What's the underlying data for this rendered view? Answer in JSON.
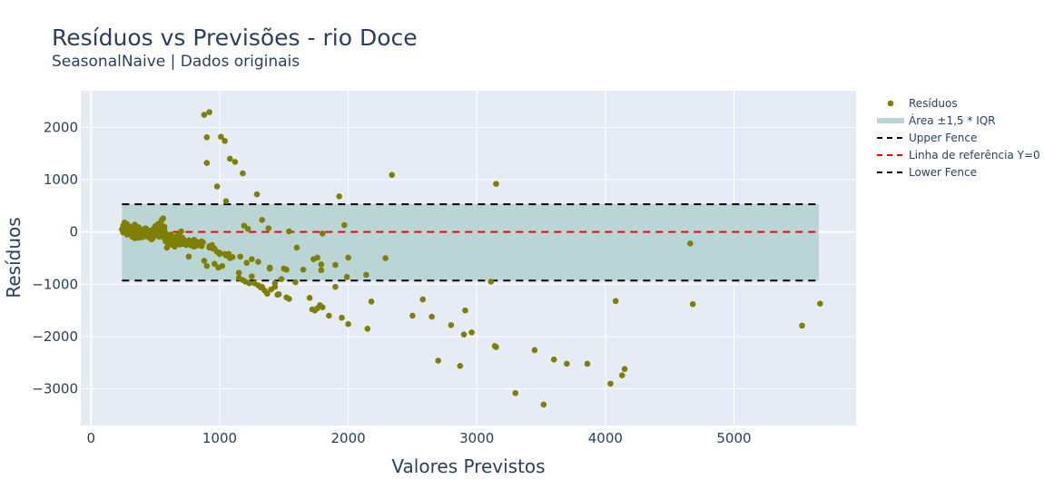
{
  "chart_data": {
    "type": "scatter",
    "title": "Resíduos vs Previsões - rio Doce",
    "subtitle": "SeasonalNaive | Dados originais",
    "xlabel": "Valores Previstos",
    "ylabel": "Resíduos",
    "xlim": [
      -80,
      5950
    ],
    "ylim": [
      -3700,
      2700
    ],
    "xticks": [
      0,
      1000,
      2000,
      3000,
      4000,
      5000
    ],
    "xtick_labels": [
      "0",
      "1000",
      "2000",
      "3000",
      "4000",
      "5000"
    ],
    "yticks": [
      2000,
      1000,
      0,
      -1000,
      -2000,
      -3000
    ],
    "ytick_labels": [
      "2000",
      "1000",
      "0",
      "−1000",
      "−2000",
      "−3000"
    ],
    "grid": true,
    "legend_position": "right",
    "colors": {
      "plot_bg": "#e5ecf6",
      "points": "#808000",
      "iqr_area": "#b9d5d5",
      "fence": "#000000",
      "reference": "#ff0000",
      "text": "#2a3f5f"
    },
    "fences": {
      "upper": 530,
      "lower": -930,
      "reference": 0,
      "x_range": [
        240,
        5660
      ]
    },
    "legend": [
      {
        "label": "Resíduos",
        "kind": "marker"
      },
      {
        "label": "Área ±1,5 * IQR",
        "kind": "area"
      },
      {
        "label": "Upper Fence",
        "kind": "dash-black"
      },
      {
        "label": "Linha de referência Y=0",
        "kind": "dash-red"
      },
      {
        "label": "Lower Fence",
        "kind": "dash-black"
      }
    ],
    "points": [
      [
        240,
        50
      ],
      [
        250,
        120
      ],
      [
        260,
        180
      ],
      [
        270,
        80
      ],
      [
        280,
        150
      ],
      [
        290,
        20
      ],
      [
        300,
        -30
      ],
      [
        310,
        100
      ],
      [
        320,
        60
      ],
      [
        330,
        -60
      ],
      [
        340,
        140
      ],
      [
        350,
        30
      ],
      [
        360,
        -80
      ],
      [
        370,
        90
      ],
      [
        380,
        -20
      ],
      [
        390,
        40
      ],
      [
        400,
        -100
      ],
      [
        410,
        10
      ],
      [
        420,
        -40
      ],
      [
        430,
        60
      ],
      [
        440,
        -90
      ],
      [
        450,
        20
      ],
      [
        460,
        -120
      ],
      [
        470,
        30
      ],
      [
        480,
        -60
      ],
      [
        490,
        70
      ],
      [
        500,
        110
      ],
      [
        510,
        -40
      ],
      [
        520,
        150
      ],
      [
        530,
        0
      ],
      [
        540,
        180
      ],
      [
        550,
        230
      ],
      [
        560,
        260
      ],
      [
        570,
        100
      ],
      [
        580,
        -180
      ],
      [
        590,
        -300
      ],
      [
        600,
        -250
      ],
      [
        610,
        -120
      ],
      [
        620,
        -80
      ],
      [
        630,
        -150
      ],
      [
        640,
        -200
      ],
      [
        650,
        -170
      ],
      [
        660,
        -90
      ],
      [
        670,
        -140
      ],
      [
        680,
        -60
      ],
      [
        700,
        -200
      ],
      [
        720,
        -230
      ],
      [
        740,
        -250
      ],
      [
        760,
        -470
      ],
      [
        780,
        -260
      ],
      [
        800,
        -150
      ],
      [
        820,
        -200
      ],
      [
        840,
        -230
      ],
      [
        860,
        -180
      ],
      [
        880,
        -550
      ],
      [
        900,
        -650
      ],
      [
        920,
        -300
      ],
      [
        940,
        -250
      ],
      [
        960,
        -320
      ],
      [
        980,
        -380
      ],
      [
        1000,
        -400
      ],
      [
        1020,
        -650
      ],
      [
        1050,
        -450
      ],
      [
        1080,
        -500
      ],
      [
        1100,
        -480
      ],
      [
        1150,
        -880
      ],
      [
        1180,
        -920
      ],
      [
        1200,
        -950
      ],
      [
        1250,
        -850
      ],
      [
        1270,
        -980
      ],
      [
        1300,
        -1020
      ],
      [
        1320,
        -1060
      ],
      [
        1350,
        -1120
      ],
      [
        1370,
        -1180
      ],
      [
        1400,
        -1100
      ],
      [
        1430,
        -1050
      ],
      [
        1450,
        -1200
      ],
      [
        1480,
        -900
      ],
      [
        1500,
        -700
      ],
      [
        1520,
        -1250
      ],
      [
        1540,
        -1280
      ],
      [
        1600,
        -300
      ],
      [
        1650,
        -720
      ],
      [
        1700,
        -1260
      ],
      [
        1720,
        -1480
      ],
      [
        1740,
        -1500
      ],
      [
        1760,
        -1460
      ],
      [
        1780,
        -1400
      ],
      [
        1800,
        -1440
      ],
      [
        1850,
        -1600
      ],
      [
        1900,
        -1050
      ],
      [
        1950,
        -1640
      ],
      [
        2000,
        -1760
      ],
      [
        2150,
        -1850
      ],
      [
        2180,
        -1330
      ],
      [
        2500,
        -1600
      ],
      [
        2580,
        -1290
      ],
      [
        2650,
        -1620
      ],
      [
        2700,
        -2460
      ],
      [
        2800,
        -1780
      ],
      [
        2870,
        -2560
      ],
      [
        2900,
        -1960
      ],
      [
        2910,
        -1500
      ],
      [
        2960,
        -1920
      ],
      [
        3140,
        -2180
      ],
      [
        3150,
        -2200
      ],
      [
        3300,
        -3080
      ],
      [
        3450,
        -2260
      ],
      [
        3520,
        -3300
      ],
      [
        3600,
        -2440
      ],
      [
        3700,
        -2520
      ],
      [
        3860,
        -2520
      ],
      [
        4040,
        -2900
      ],
      [
        4080,
        -1320
      ],
      [
        4130,
        -2740
      ],
      [
        4150,
        -2620
      ],
      [
        4680,
        -1380
      ],
      [
        5530,
        -1790
      ],
      [
        5670,
        -1370
      ],
      [
        4660,
        -220
      ],
      [
        3110,
        -950
      ],
      [
        3150,
        920
      ],
      [
        2340,
        1090
      ],
      [
        2290,
        -500
      ],
      [
        2140,
        -820
      ],
      [
        1990,
        -860
      ],
      [
        2000,
        -490
      ],
      [
        1970,
        130
      ],
      [
        1930,
        680
      ],
      [
        1900,
        -630
      ],
      [
        880,
        2240
      ],
      [
        920,
        2290
      ],
      [
        900,
        1810
      ],
      [
        900,
        1320
      ],
      [
        1010,
        1820
      ],
      [
        1040,
        1740
      ],
      [
        980,
        870
      ],
      [
        1080,
        1400
      ],
      [
        1120,
        1340
      ],
      [
        1180,
        1120
      ],
      [
        1050,
        590
      ],
      [
        1290,
        720
      ],
      [
        1330,
        230
      ],
      [
        1190,
        120
      ],
      [
        1220,
        60
      ],
      [
        1380,
        70
      ],
      [
        1540,
        10
      ],
      [
        1300,
        -570
      ],
      [
        1250,
        -520
      ],
      [
        1210,
        -590
      ],
      [
        1160,
        -470
      ],
      [
        1390,
        -680
      ],
      [
        1430,
        -980
      ],
      [
        1520,
        -720
      ],
      [
        1590,
        -960
      ],
      [
        1730,
        -520
      ],
      [
        1760,
        -490
      ],
      [
        1790,
        -620
      ],
      [
        1790,
        -730
      ],
      [
        1800,
        -30
      ],
      [
        1070,
        -420
      ],
      [
        1150,
        -780
      ],
      [
        1230,
        -980
      ],
      [
        1390,
        -700
      ],
      [
        1330,
        -1050
      ],
      [
        1460,
        -1190
      ],
      [
        920,
        -270
      ],
      [
        950,
        -320
      ],
      [
        960,
        -610
      ],
      [
        1000,
        -420
      ],
      [
        1040,
        -420
      ],
      [
        990,
        -680
      ],
      [
        870,
        -200
      ],
      [
        860,
        -270
      ],
      [
        840,
        -240
      ],
      [
        820,
        -260
      ],
      [
        800,
        -280
      ],
      [
        780,
        -240
      ],
      [
        760,
        -160
      ],
      [
        740,
        -200
      ],
      [
        720,
        -150
      ],
      [
        710,
        -110
      ],
      [
        700,
        10
      ],
      [
        690,
        -80
      ],
      [
        670,
        -100
      ],
      [
        660,
        -160
      ],
      [
        640,
        -120
      ],
      [
        620,
        -50
      ],
      [
        600,
        -100
      ],
      [
        590,
        -60
      ],
      [
        580,
        -30
      ],
      [
        570,
        30
      ],
      [
        560,
        60
      ],
      [
        550,
        120
      ],
      [
        540,
        80
      ],
      [
        530,
        40
      ],
      [
        520,
        -20
      ],
      [
        500,
        -60
      ],
      [
        480,
        -120
      ],
      [
        460,
        -30
      ],
      [
        440,
        30
      ],
      [
        420,
        70
      ],
      [
        400,
        -40
      ],
      [
        380,
        50
      ],
      [
        360,
        -30
      ],
      [
        340,
        -120
      ],
      [
        320,
        -90
      ],
      [
        300,
        60
      ],
      [
        280,
        -50
      ],
      [
        260,
        0
      ],
      [
        250,
        -10
      ],
      [
        270,
        30
      ],
      [
        290,
        90
      ],
      [
        310,
        -40
      ],
      [
        330,
        20
      ],
      [
        350,
        -70
      ],
      [
        370,
        -110
      ],
      [
        390,
        -60
      ],
      [
        410,
        30
      ],
      [
        430,
        -30
      ],
      [
        450,
        -80
      ],
      [
        470,
        -140
      ],
      [
        490,
        -10
      ],
      [
        510,
        20
      ],
      [
        530,
        -90
      ],
      [
        550,
        -40
      ],
      [
        570,
        -120
      ],
      [
        590,
        -150
      ],
      [
        610,
        -190
      ],
      [
        630,
        -240
      ],
      [
        650,
        -280
      ],
      [
        670,
        -220
      ],
      [
        690,
        -240
      ],
      [
        710,
        -180
      ],
      [
        730,
        -210
      ],
      [
        750,
        -190
      ],
      [
        770,
        -230
      ],
      [
        790,
        -210
      ],
      [
        810,
        -170
      ],
      [
        830,
        -200
      ]
    ]
  }
}
